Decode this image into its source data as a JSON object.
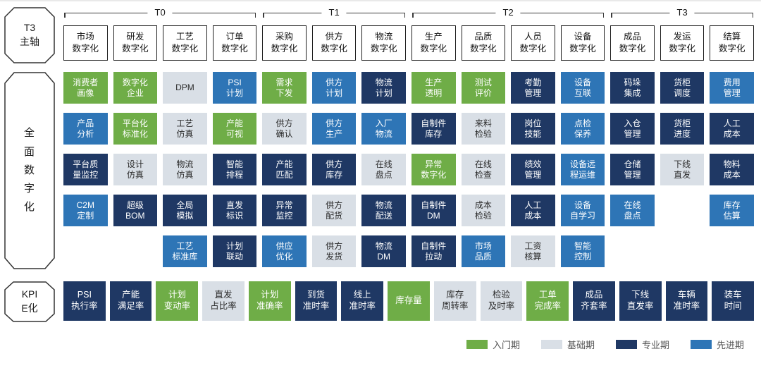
{
  "colors": {
    "entry": "#6fad47",
    "basic": "#d9dfe6",
    "professional": "#1f3864",
    "advanced": "#2e75b6"
  },
  "text_colors": {
    "entry": "#ffffff",
    "basic": "#2b2b2b",
    "professional": "#ffffff",
    "advanced": "#ffffff"
  },
  "sidebar": {
    "top": "T3\n主轴",
    "middle": "全\n面\n数\n字\n化",
    "bottom": "KPI\nE化"
  },
  "phases": [
    {
      "label": "T0",
      "span": 4
    },
    {
      "label": "T1",
      "span": 3
    },
    {
      "label": "T2",
      "span": 4
    },
    {
      "label": "T3",
      "span": 3
    }
  ],
  "columns": [
    {
      "header": "市场\n数字化",
      "cells": [
        {
          "label": "消费者\n画像",
          "level": "entry"
        },
        {
          "label": "产品\n分析",
          "level": "advanced"
        },
        {
          "label": "平台质\n量监控",
          "level": "professional"
        },
        {
          "label": "C2M\n定制",
          "level": "advanced"
        },
        null
      ]
    },
    {
      "header": "研发\n数字化",
      "cells": [
        {
          "label": "数字化\n企业",
          "level": "entry"
        },
        {
          "label": "平台化\n标准化",
          "level": "entry"
        },
        {
          "label": "设计\n仿真",
          "level": "basic"
        },
        {
          "label": "超级\nBOM",
          "level": "professional"
        },
        null
      ]
    },
    {
      "header": "工艺\n数字化",
      "cells": [
        {
          "label": "DPM",
          "level": "basic"
        },
        {
          "label": "工艺\n仿真",
          "level": "basic"
        },
        {
          "label": "物流\n仿真",
          "level": "basic"
        },
        {
          "label": "全局\n模拟",
          "level": "professional"
        },
        {
          "label": "工艺\n标准库",
          "level": "advanced"
        }
      ]
    },
    {
      "header": "订单\n数字化",
      "cells": [
        {
          "label": "PSI\n计划",
          "level": "advanced"
        },
        {
          "label": "产能\n可视",
          "level": "entry"
        },
        {
          "label": "智能\n排程",
          "level": "professional"
        },
        {
          "label": "直发\n标识",
          "level": "professional"
        },
        {
          "label": "计划\n联动",
          "level": "professional"
        }
      ]
    },
    {
      "header": "采购\n数字化",
      "cells": [
        {
          "label": "需求\n下发",
          "level": "entry"
        },
        {
          "label": "供方\n确认",
          "level": "basic"
        },
        {
          "label": "产能\n匹配",
          "level": "professional"
        },
        {
          "label": "异常\n监控",
          "level": "professional"
        },
        {
          "label": "供应\n优化",
          "level": "advanced"
        }
      ]
    },
    {
      "header": "供方\n数字化",
      "cells": [
        {
          "label": "供方\n计划",
          "level": "advanced"
        },
        {
          "label": "供方\n生产",
          "level": "advanced"
        },
        {
          "label": "供方\n库存",
          "level": "professional"
        },
        {
          "label": "供方\n配货",
          "level": "basic"
        },
        {
          "label": "供方\n发货",
          "level": "basic"
        }
      ]
    },
    {
      "header": "物流\n数字化",
      "cells": [
        {
          "label": "物流\n计划",
          "level": "professional"
        },
        {
          "label": "入厂\n物流",
          "level": "advanced"
        },
        {
          "label": "在线\n盘点",
          "level": "basic"
        },
        {
          "label": "物流\n配送",
          "level": "professional"
        },
        {
          "label": "物流\nDM",
          "level": "professional"
        }
      ]
    },
    {
      "header": "生产\n数字化",
      "cells": [
        {
          "label": "生产\n透明",
          "level": "entry"
        },
        {
          "label": "自制件\n库存",
          "level": "professional"
        },
        {
          "label": "异常\n数字化",
          "level": "entry"
        },
        {
          "label": "自制件\nDM",
          "level": "professional"
        },
        {
          "label": "自制件\n拉动",
          "level": "professional"
        }
      ]
    },
    {
      "header": "品质\n数字化",
      "cells": [
        {
          "label": "测试\n评价",
          "level": "entry"
        },
        {
          "label": "来料\n检验",
          "level": "basic"
        },
        {
          "label": "在线\n检查",
          "level": "basic"
        },
        {
          "label": "成本\n检验",
          "level": "basic"
        },
        {
          "label": "市场\n品质",
          "level": "advanced"
        }
      ]
    },
    {
      "header": "人员\n数字化",
      "cells": [
        {
          "label": "考勤\n管理",
          "level": "professional"
        },
        {
          "label": "岗位\n技能",
          "level": "professional"
        },
        {
          "label": "绩效\n管理",
          "level": "professional"
        },
        {
          "label": "人工\n成本",
          "level": "professional"
        },
        {
          "label": "工资\n核算",
          "level": "basic"
        }
      ]
    },
    {
      "header": "设备\n数字化",
      "cells": [
        {
          "label": "设备\n互联",
          "level": "advanced"
        },
        {
          "label": "点检\n保养",
          "level": "advanced"
        },
        {
          "label": "设备远\n程运维",
          "level": "advanced"
        },
        {
          "label": "设备\n自学习",
          "level": "advanced"
        },
        {
          "label": "智能\n控制",
          "level": "advanced"
        }
      ]
    },
    {
      "header": "成品\n数字化",
      "cells": [
        {
          "label": "码垛\n集成",
          "level": "professional"
        },
        {
          "label": "入仓\n管理",
          "level": "professional"
        },
        {
          "label": "仓储\n管理",
          "level": "professional"
        },
        {
          "label": "在线\n盘点",
          "level": "advanced"
        },
        null
      ]
    },
    {
      "header": "发运\n数字化",
      "cells": [
        {
          "label": "货柜\n调度",
          "level": "professional"
        },
        {
          "label": "货柜\n进度",
          "level": "professional"
        },
        {
          "label": "下线\n直发",
          "level": "basic"
        },
        null,
        null
      ]
    },
    {
      "header": "结算\n数字化",
      "cells": [
        {
          "label": "费用\n管理",
          "level": "advanced"
        },
        {
          "label": "人工\n成本",
          "level": "professional"
        },
        {
          "label": "物料\n成本",
          "level": "professional"
        },
        {
          "label": "库存\n估算",
          "level": "advanced"
        },
        null
      ]
    }
  ],
  "kpis": [
    {
      "label": "PSI\n执行率",
      "level": "professional"
    },
    {
      "label": "产能\n满足率",
      "level": "professional"
    },
    {
      "label": "计划\n变动率",
      "level": "entry"
    },
    {
      "label": "直发\n占比率",
      "level": "basic"
    },
    {
      "label": "计划\n准确率",
      "level": "entry"
    },
    {
      "label": "到货\n准时率",
      "level": "professional"
    },
    {
      "label": "线上\n准时率",
      "level": "professional"
    },
    {
      "label": "库存量",
      "level": "entry"
    },
    {
      "label": "库存\n周转率",
      "level": "basic"
    },
    {
      "label": "检验\n及时率",
      "level": "basic"
    },
    {
      "label": "工单\n完成率",
      "level": "entry"
    },
    {
      "label": "成品\n齐套率",
      "level": "professional"
    },
    {
      "label": "下线\n直发率",
      "level": "professional"
    },
    {
      "label": "车辆\n准时率",
      "level": "professional"
    },
    {
      "label": "装车\n时间",
      "level": "professional"
    }
  ],
  "legend": [
    {
      "label": "入门期",
      "level": "entry"
    },
    {
      "label": "基础期",
      "level": "basic"
    },
    {
      "label": "专业期",
      "level": "professional"
    },
    {
      "label": "先进期",
      "level": "advanced"
    }
  ]
}
